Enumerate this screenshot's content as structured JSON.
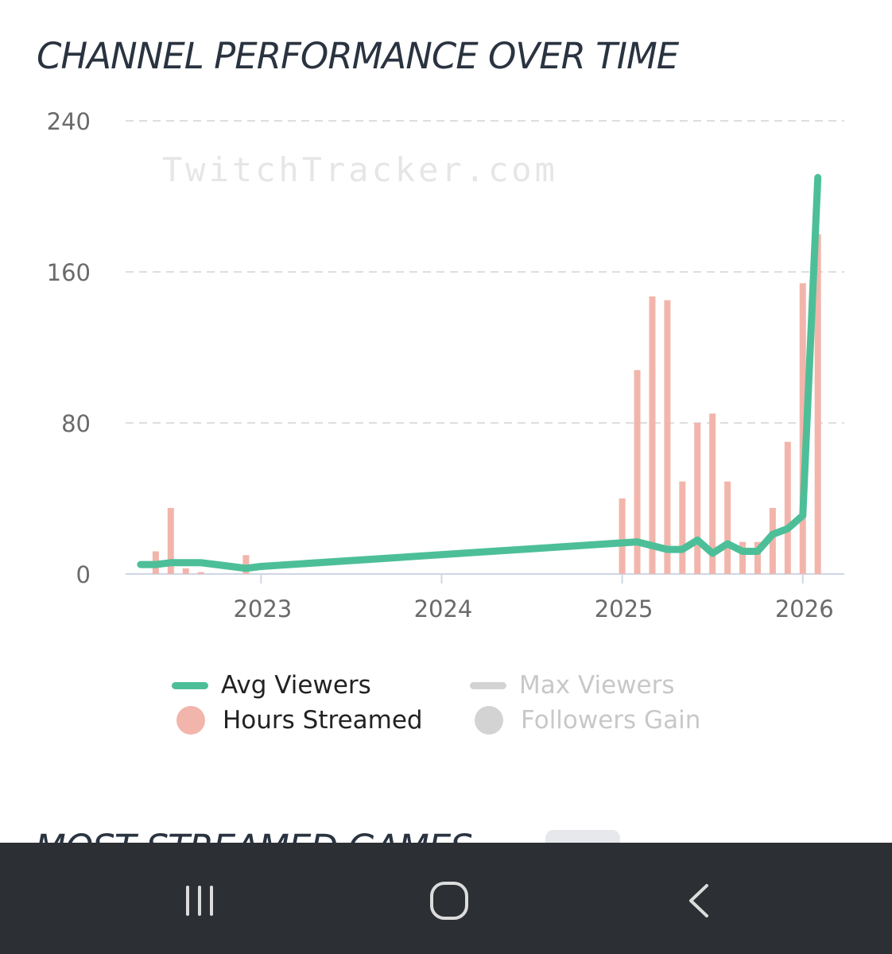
{
  "header": {
    "title": "CHANNEL PERFORMANCE OVER TIME"
  },
  "chart_data": {
    "type": "bar",
    "watermark": "TwitchTracker.com",
    "y_ticks": [
      "0",
      "80",
      "160",
      "240"
    ],
    "ylim": [
      0,
      240
    ],
    "x_ticks": [
      "2023",
      "2024",
      "2025",
      "2026"
    ],
    "grid": true,
    "legend_position": "bottom",
    "series": [
      {
        "name": "Avg Viewers",
        "kind": "line",
        "color": "#4dbf98",
        "active": true,
        "points": [
          {
            "x": "2022-05",
            "y": 5
          },
          {
            "x": "2022-06",
            "y": 5
          },
          {
            "x": "2022-07",
            "y": 6
          },
          {
            "x": "2022-08",
            "y": 6
          },
          {
            "x": "2022-09",
            "y": 6
          },
          {
            "x": "2022-10",
            "y": 5
          },
          {
            "x": "2022-11",
            "y": 4
          },
          {
            "x": "2022-12",
            "y": 3
          },
          {
            "x": "2023-01",
            "y": 4
          },
          {
            "x": "2025-02",
            "y": 17
          },
          {
            "x": "2025-03",
            "y": 15
          },
          {
            "x": "2025-04",
            "y": 13
          },
          {
            "x": "2025-05",
            "y": 13
          },
          {
            "x": "2025-06",
            "y": 18
          },
          {
            "x": "2025-07",
            "y": 11
          },
          {
            "x": "2025-08",
            "y": 16
          },
          {
            "x": "2025-09",
            "y": 12
          },
          {
            "x": "2025-10",
            "y": 12
          },
          {
            "x": "2025-11",
            "y": 21
          },
          {
            "x": "2025-12",
            "y": 24
          },
          {
            "x": "2026-01",
            "y": 31
          },
          {
            "x": "2026-02",
            "y": 210
          }
        ]
      },
      {
        "name": "Hours Streamed",
        "kind": "bar",
        "color": "#f2b5ab",
        "active": true,
        "points": [
          {
            "x": "2022-06",
            "y": 12
          },
          {
            "x": "2022-07",
            "y": 35
          },
          {
            "x": "2022-08",
            "y": 3
          },
          {
            "x": "2022-09",
            "y": 1
          },
          {
            "x": "2022-12",
            "y": 10
          },
          {
            "x": "2025-01",
            "y": 40
          },
          {
            "x": "2025-02",
            "y": 108
          },
          {
            "x": "2025-03",
            "y": 147
          },
          {
            "x": "2025-04",
            "y": 145
          },
          {
            "x": "2025-05",
            "y": 49
          },
          {
            "x": "2025-06",
            "y": 80
          },
          {
            "x": "2025-07",
            "y": 85
          },
          {
            "x": "2025-08",
            "y": 49
          },
          {
            "x": "2025-09",
            "y": 17
          },
          {
            "x": "2025-10",
            "y": 17
          },
          {
            "x": "2025-11",
            "y": 35
          },
          {
            "x": "2025-12",
            "y": 70
          },
          {
            "x": "2026-01",
            "y": 154
          },
          {
            "x": "2026-02",
            "y": 180
          }
        ]
      },
      {
        "name": "Max Viewers",
        "kind": "line",
        "color": "#d3d3d3",
        "active": false
      },
      {
        "name": "Followers Gain",
        "kind": "dot",
        "color": "#d3d3d3",
        "active": false
      }
    ]
  },
  "section": {
    "next_title": "MOST STREAMED GAMES"
  },
  "nav": {
    "recents_icon": "recents-icon",
    "home_icon": "home-icon",
    "back_icon": "back-icon"
  }
}
